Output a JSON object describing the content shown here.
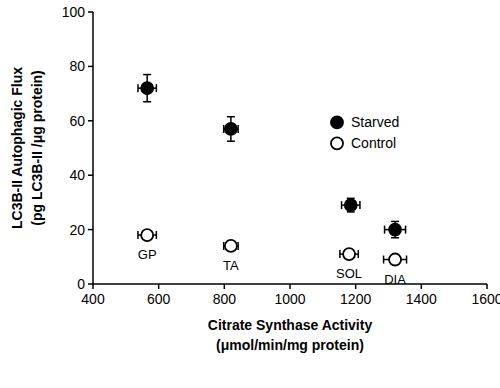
{
  "chart_data": {
    "type": "scatter",
    "xlabel": [
      "Citrate Synthase Activity",
      "(μmol/min/mg protein)"
    ],
    "ylabel": [
      "LC3B-II Autophagic Flux",
      "(pg LC3B-II /μg protein)"
    ],
    "xlim": [
      400,
      1600
    ],
    "xticks": [
      400,
      600,
      800,
      1000,
      1200,
      1400,
      1600
    ],
    "ylim": [
      0,
      100
    ],
    "yticks": [
      0,
      20,
      40,
      60,
      80,
      100
    ],
    "grid": false,
    "legend": "right",
    "series": [
      {
        "name": "Starved",
        "color": "#000000",
        "marker": "filled-circle",
        "x": [
          565,
          820,
          1185,
          1320
        ],
        "values": [
          72,
          57,
          29,
          20
        ],
        "x_error": [
          28,
          22,
          28,
          32
        ],
        "error": [
          5,
          4.5,
          2.5,
          3
        ]
      },
      {
        "name": "Control",
        "color": "#000000",
        "marker": "open-circle",
        "x": [
          565,
          820,
          1180,
          1320
        ],
        "values": [
          18,
          14,
          11,
          9
        ],
        "x_error": [
          28,
          22,
          28,
          35
        ],
        "error": [
          1.5,
          1.2,
          1.5,
          1.5
        ],
        "labels": [
          "GP",
          "TA",
          "SOL",
          "DIA"
        ]
      }
    ]
  }
}
